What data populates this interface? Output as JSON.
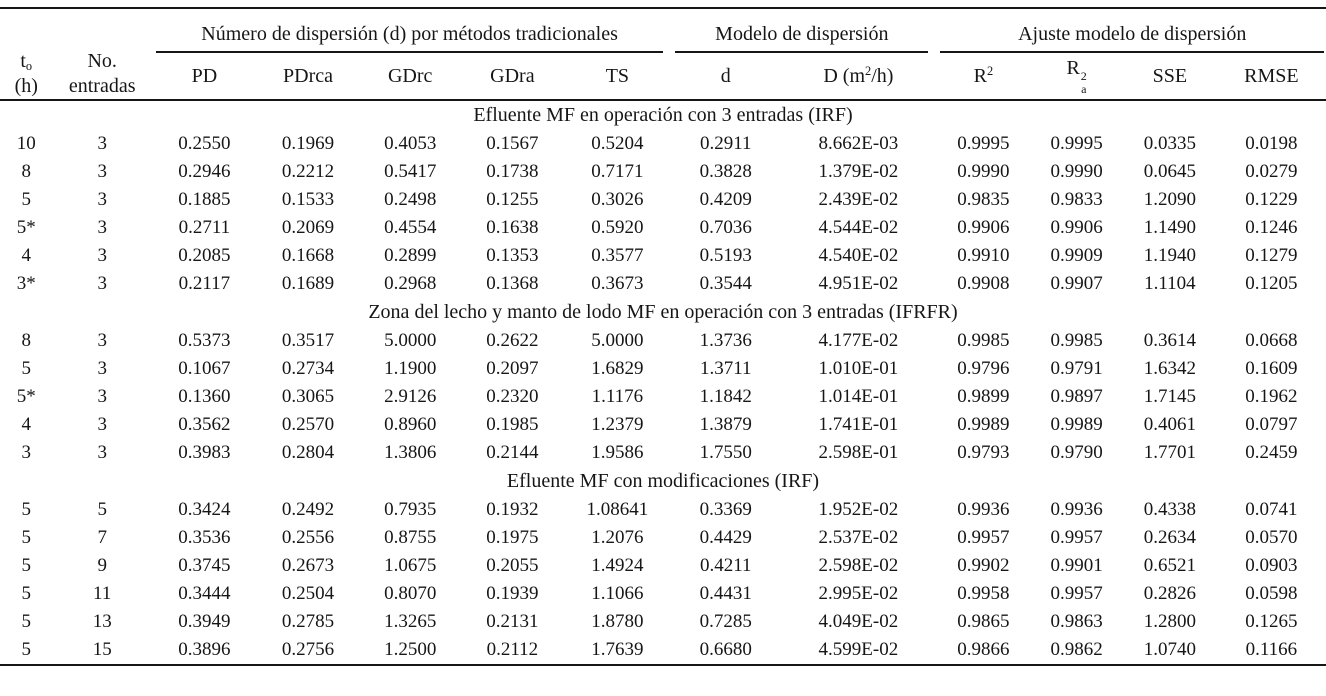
{
  "table": {
    "header": {
      "to_base": "t",
      "to_sub": "o",
      "to_line2": "(h)",
      "entradas_line1": "No.",
      "entradas_line2": "entradas",
      "group_traditional": "Número de dispersión (d) por métodos tradicionales",
      "group_model": "Modelo de dispersión",
      "group_fit": "Ajuste modelo de dispersión",
      "col_pd": "PD",
      "col_pdrca": "PDrca",
      "col_gdrc": "GDrc",
      "col_gdra": "GDra",
      "col_ts": "TS",
      "col_d": "d",
      "col_D_base": "D (m",
      "col_D_sup": "2",
      "col_D_rest": "/h)",
      "col_r2_base": "R",
      "col_r2_sup": "2",
      "col_r2a_base": "R",
      "col_r2a_sup": "2",
      "col_r2a_sub": "a",
      "col_sse": "SSE",
      "col_rmse": "RMSE"
    },
    "sections": [
      {
        "title": "Efluente MF en operación con 3 entradas (IRF)",
        "rows": [
          [
            "10",
            "3",
            "0.2550",
            "0.1969",
            "0.4053",
            "0.1567",
            "0.5204",
            "0.2911",
            "8.662E-03",
            "0.9995",
            "0.9995",
            "0.0335",
            "0.0198"
          ],
          [
            "8",
            "3",
            "0.2946",
            "0.2212",
            "0.5417",
            "0.1738",
            "0.7171",
            "0.3828",
            "1.379E-02",
            "0.9990",
            "0.9990",
            "0.0645",
            "0.0279"
          ],
          [
            "5",
            "3",
            "0.1885",
            "0.1533",
            "0.2498",
            "0.1255",
            "0.3026",
            "0.4209",
            "2.439E-02",
            "0.9835",
            "0.9833",
            "1.2090",
            "0.1229"
          ],
          [
            "5*",
            "3",
            "0.2711",
            "0.2069",
            "0.4554",
            "0.1638",
            "0.5920",
            "0.7036",
            "4.544E-02",
            "0.9906",
            "0.9906",
            "1.1490",
            "0.1246"
          ],
          [
            "4",
            "3",
            "0.2085",
            "0.1668",
            "0.2899",
            "0.1353",
            "0.3577",
            "0.5193",
            "4.540E-02",
            "0.9910",
            "0.9909",
            "1.1940",
            "0.1279"
          ],
          [
            "3*",
            "3",
            "0.2117",
            "0.1689",
            "0.2968",
            "0.1368",
            "0.3673",
            "0.3544",
            "4.951E-02",
            "0.9908",
            "0.9907",
            "1.1104",
            "0.1205"
          ]
        ]
      },
      {
        "title": "Zona del lecho y manto de lodo MF en operación con 3 entradas (IFRFR)",
        "rows": [
          [
            "8",
            "3",
            "0.5373",
            "0.3517",
            "5.0000",
            "0.2622",
            "5.0000",
            "1.3736",
            "4.177E-02",
            "0.9985",
            "0.9985",
            "0.3614",
            "0.0668"
          ],
          [
            "5",
            "3",
            "0.1067",
            "0.2734",
            "1.1900",
            "0.2097",
            "1.6829",
            "1.3711",
            "1.010E-01",
            "0.9796",
            "0.9791",
            "1.6342",
            "0.1609"
          ],
          [
            "5*",
            "3",
            "0.1360",
            "0.3065",
            "2.9126",
            "0.2320",
            "1.1176",
            "1.1842",
            "1.014E-01",
            "0.9899",
            "0.9897",
            "1.7145",
            "0.1962"
          ],
          [
            "4",
            "3",
            "0.3562",
            "0.2570",
            "0.8960",
            "0.1985",
            "1.2379",
            "1.3879",
            "1.741E-01",
            "0.9989",
            "0.9989",
            "0.4061",
            "0.0797"
          ],
          [
            "3",
            "3",
            "0.3983",
            "0.2804",
            "1.3806",
            "0.2144",
            "1.9586",
            "1.7550",
            "2.598E-01",
            "0.9793",
            "0.9790",
            "1.7701",
            "0.2459"
          ]
        ]
      },
      {
        "title": "Efluente MF con modificaciones (IRF)",
        "rows": [
          [
            "5",
            "5",
            "0.3424",
            "0.2492",
            "0.7935",
            "0.1932",
            "1.08641",
            "0.3369",
            "1.952E-02",
            "0.9936",
            "0.9936",
            "0.4338",
            "0.0741"
          ],
          [
            "5",
            "7",
            "0.3536",
            "0.2556",
            "0.8755",
            "0.1975",
            "1.2076",
            "0.4429",
            "2.537E-02",
            "0.9957",
            "0.9957",
            "0.2634",
            "0.0570"
          ],
          [
            "5",
            "9",
            "0.3745",
            "0.2673",
            "1.0675",
            "0.2055",
            "1.4924",
            "0.4211",
            "2.598E-02",
            "0.9902",
            "0.9901",
            "0.6521",
            "0.0903"
          ],
          [
            "5",
            "11",
            "0.3444",
            "0.2504",
            "0.8070",
            "0.1939",
            "1.1066",
            "0.4431",
            "2.995E-02",
            "0.9958",
            "0.9957",
            "0.2826",
            "0.0598"
          ],
          [
            "5",
            "13",
            "0.3949",
            "0.2785",
            "1.3265",
            "0.2131",
            "1.8780",
            "0.7285",
            "4.049E-02",
            "0.9865",
            "0.9863",
            "1.2800",
            "0.1265"
          ],
          [
            "5",
            "15",
            "0.3896",
            "0.2756",
            "1.2500",
            "0.2112",
            "1.7639",
            "0.6680",
            "4.599E-02",
            "0.9866",
            "0.9862",
            "1.0740",
            "0.1166"
          ]
        ]
      }
    ]
  }
}
